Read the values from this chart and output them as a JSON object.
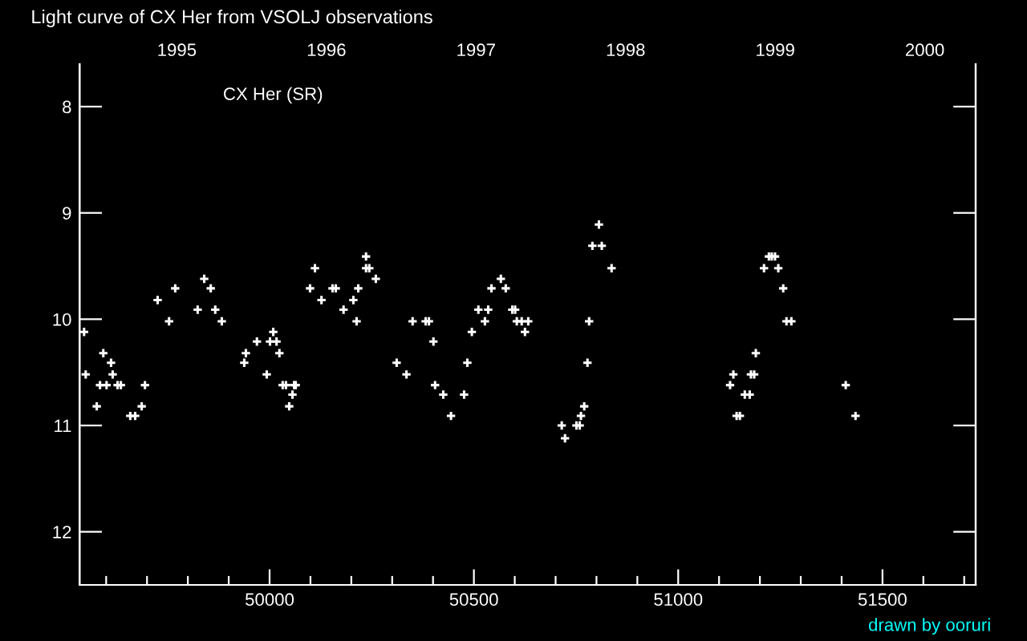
{
  "chart_data": {
    "type": "scatter",
    "title": "Light curve of CX Her from VSOLJ observations",
    "annotations": [
      "CX Her (SR)",
      "drawn by ooruri"
    ],
    "marker": "cross",
    "grid": false,
    "xlim": [
      49535,
      51728
    ],
    "ylim": [
      12.5,
      7.6
    ],
    "xticks": [
      {
        "value": 49600,
        "label": null
      },
      {
        "value": 49700,
        "label": null
      },
      {
        "value": 49800,
        "label": null
      },
      {
        "value": 49900,
        "label": null
      },
      50000,
      {
        "value": 50100,
        "label": null
      },
      {
        "value": 50200,
        "label": null
      },
      {
        "value": 50300,
        "label": null
      },
      {
        "value": 50400,
        "label": null
      },
      50500,
      {
        "value": 50600,
        "label": null
      },
      {
        "value": 50700,
        "label": null
      },
      {
        "value": 50800,
        "label": null
      },
      {
        "value": 50900,
        "label": null
      },
      51000,
      {
        "value": 51100,
        "label": null
      },
      {
        "value": 51200,
        "label": null
      },
      {
        "value": 51300,
        "label": null
      },
      {
        "value": 51400,
        "label": null
      },
      51500,
      {
        "value": 51600,
        "label": null
      },
      {
        "value": 51700,
        "label": null
      }
    ],
    "yticks": [
      8,
      9,
      10,
      11,
      12
    ],
    "x2lim": [
      1994.35,
      2000.34
    ],
    "x2ticks": [
      1995,
      1996,
      1997,
      1998,
      1999,
      2000
    ],
    "series": [
      {
        "color": "#ffffff",
        "x": [
          49546,
          49550,
          49577,
          49585,
          49601,
          49593,
          49612,
          49616,
          49628,
          49636,
          49659,
          49671,
          49687,
          49695,
          49726,
          49754,
          49769,
          49840,
          49824,
          49856,
          49867,
          49883,
          49938,
          49942,
          49969,
          49993,
          50001,
          50017,
          50009,
          50024,
          50032,
          50040,
          50060,
          50064,
          50056,
          50048,
          50099,
          50111,
          50127,
          50154,
          50162,
          50181,
          50205,
          50213,
          50217,
          50236,
          50236,
          50244,
          50260,
          50311,
          50335,
          50350,
          50382,
          50390,
          50401,
          50405,
          50425,
          50444,
          50476,
          50484,
          50495,
          50511,
          50527,
          50535,
          50543,
          50566,
          50578,
          50594,
          50601,
          50605,
          50617,
          50633,
          50625,
          50782,
          50778,
          50770,
          50762,
          50715,
          50723,
          50751,
          50759,
          50806,
          50790,
          50813,
          50837,
          51127,
          51135,
          51143,
          51151,
          51163,
          51175,
          51178,
          51186,
          51190,
          51210,
          51222,
          51229,
          51237,
          51245,
          51257,
          51265,
          51277,
          51410,
          51434
        ],
        "values": [
          10.12,
          10.52,
          10.82,
          10.62,
          10.62,
          10.32,
          10.41,
          10.52,
          10.62,
          10.62,
          10.91,
          10.91,
          10.82,
          10.62,
          9.82,
          10.02,
          9.71,
          9.62,
          9.91,
          9.71,
          9.91,
          10.02,
          10.41,
          10.32,
          10.21,
          10.52,
          10.21,
          10.21,
          10.12,
          10.32,
          10.62,
          10.62,
          10.62,
          10.62,
          10.71,
          10.82,
          9.71,
          9.52,
          9.82,
          9.71,
          9.71,
          9.91,
          9.82,
          10.02,
          9.71,
          9.41,
          9.52,
          9.52,
          9.62,
          10.41,
          10.52,
          10.02,
          10.02,
          10.02,
          10.21,
          10.62,
          10.71,
          10.91,
          10.71,
          10.41,
          10.12,
          9.91,
          10.02,
          9.91,
          9.71,
          9.62,
          9.71,
          9.91,
          9.91,
          10.02,
          10.02,
          10.02,
          10.12,
          10.02,
          10.41,
          10.82,
          10.91,
          11.0,
          11.12,
          11.0,
          11.0,
          9.11,
          9.31,
          9.31,
          9.52,
          10.62,
          10.52,
          10.91,
          10.91,
          10.71,
          10.71,
          10.52,
          10.52,
          10.32,
          9.52,
          9.41,
          9.41,
          9.41,
          9.52,
          9.71,
          10.02,
          10.02,
          10.62,
          10.91
        ]
      }
    ]
  }
}
